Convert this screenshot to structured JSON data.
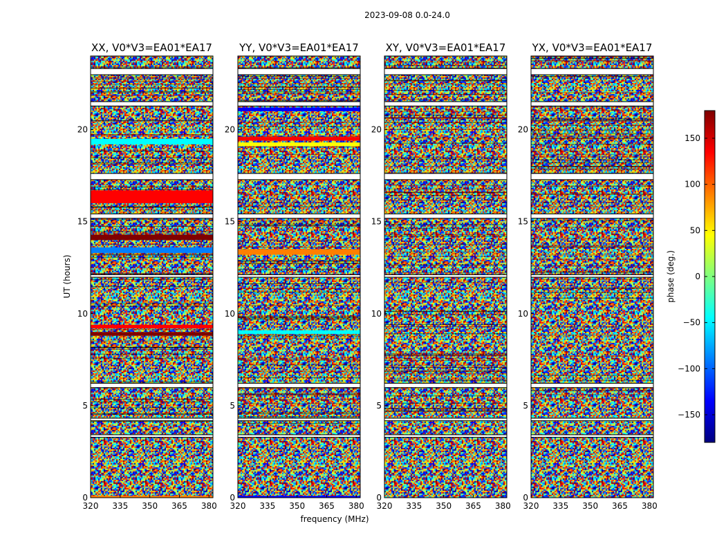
{
  "figure": {
    "suptitle": "2023-09-08 0.0-24.0"
  },
  "chart_data": {
    "type": "heatmap",
    "xlabel": "frequency (MHz)",
    "ylabel": "UT (hours)",
    "xlim": [
      320,
      382
    ],
    "ylim": [
      0,
      24
    ],
    "xticks": [
      320,
      335,
      350,
      365,
      380
    ],
    "yticks": [
      0,
      5,
      10,
      15,
      20
    ],
    "colorbar": {
      "label": "phase (deg.)",
      "range": [
        -180,
        180
      ],
      "ticks": [
        150,
        100,
        50,
        0,
        -50,
        -100,
        -150
      ],
      "tick_labels": [
        "150",
        "100",
        "50",
        "0",
        "−50",
        "−100",
        "−150"
      ],
      "colormap": "jet",
      "colors": [
        "#00007f",
        "#0000ff",
        "#007fff",
        "#00ffff",
        "#7fff7f",
        "#ffff00",
        "#ff7f00",
        "#ff0000",
        "#7f0000"
      ]
    },
    "panels": [
      {
        "title": "XX, V0*V3=EA01*EA17",
        "flagged_gaps_hours": [
          [
            23.0,
            23.3
          ],
          [
            21.3,
            21.5
          ],
          [
            17.3,
            17.6
          ],
          [
            15.2,
            15.4
          ],
          [
            12.0,
            12.1
          ],
          [
            6.0,
            6.2
          ],
          [
            4.2,
            4.3
          ],
          [
            3.3,
            3.4
          ]
        ],
        "coherent_bands": [
          {
            "t0": 19.2,
            "t1": 19.5,
            "color": "#00ffff"
          },
          {
            "t0": 16.0,
            "t1": 16.7,
            "color": "#ff0000"
          },
          {
            "t0": 14.0,
            "t1": 14.3,
            "color": "#7f0000"
          },
          {
            "t0": 13.3,
            "t1": 13.6,
            "color": "#007fff"
          },
          {
            "t0": 9.2,
            "t1": 9.4,
            "color": "#ff0000"
          },
          {
            "t0": 8.8,
            "t1": 9.0,
            "color": "#7f0000"
          },
          {
            "t0": 0.0,
            "t1": 0.1,
            "color": "#ff7f00"
          }
        ]
      },
      {
        "title": "YY, V0*V3=EA01*EA17",
        "flagged_gaps_hours": [
          [
            23.0,
            23.3
          ],
          [
            21.3,
            21.5
          ],
          [
            17.3,
            17.6
          ],
          [
            15.2,
            15.4
          ],
          [
            12.0,
            12.1
          ],
          [
            6.0,
            6.2
          ],
          [
            4.2,
            4.3
          ],
          [
            3.3,
            3.4
          ]
        ],
        "coherent_bands": [
          {
            "t0": 21.0,
            "t1": 21.2,
            "color": "#0000ff"
          },
          {
            "t0": 19.4,
            "t1": 19.6,
            "color": "#ff0000"
          },
          {
            "t0": 19.1,
            "t1": 19.3,
            "color": "#ffff00"
          },
          {
            "t0": 13.2,
            "t1": 13.5,
            "color": "#ff7f00"
          },
          {
            "t0": 8.9,
            "t1": 9.1,
            "color": "#00ffff"
          },
          {
            "t0": 0.0,
            "t1": 0.1,
            "color": "#0000ff"
          }
        ]
      },
      {
        "title": "XY, V0*V3=EA01*EA17",
        "flagged_gaps_hours": [
          [
            23.0,
            23.3
          ],
          [
            21.3,
            21.5
          ],
          [
            17.3,
            17.6
          ],
          [
            15.2,
            15.4
          ],
          [
            12.0,
            12.1
          ],
          [
            6.0,
            6.2
          ],
          [
            4.2,
            4.3
          ],
          [
            3.3,
            3.4
          ]
        ],
        "coherent_bands": []
      },
      {
        "title": "YX, V0*V3=EA01*EA17",
        "flagged_gaps_hours": [
          [
            23.0,
            23.3
          ],
          [
            21.3,
            21.5
          ],
          [
            17.3,
            17.6
          ],
          [
            15.2,
            15.4
          ],
          [
            12.0,
            12.1
          ],
          [
            6.0,
            6.2
          ],
          [
            4.2,
            4.3
          ],
          [
            3.3,
            3.4
          ]
        ],
        "coherent_bands": []
      }
    ]
  }
}
